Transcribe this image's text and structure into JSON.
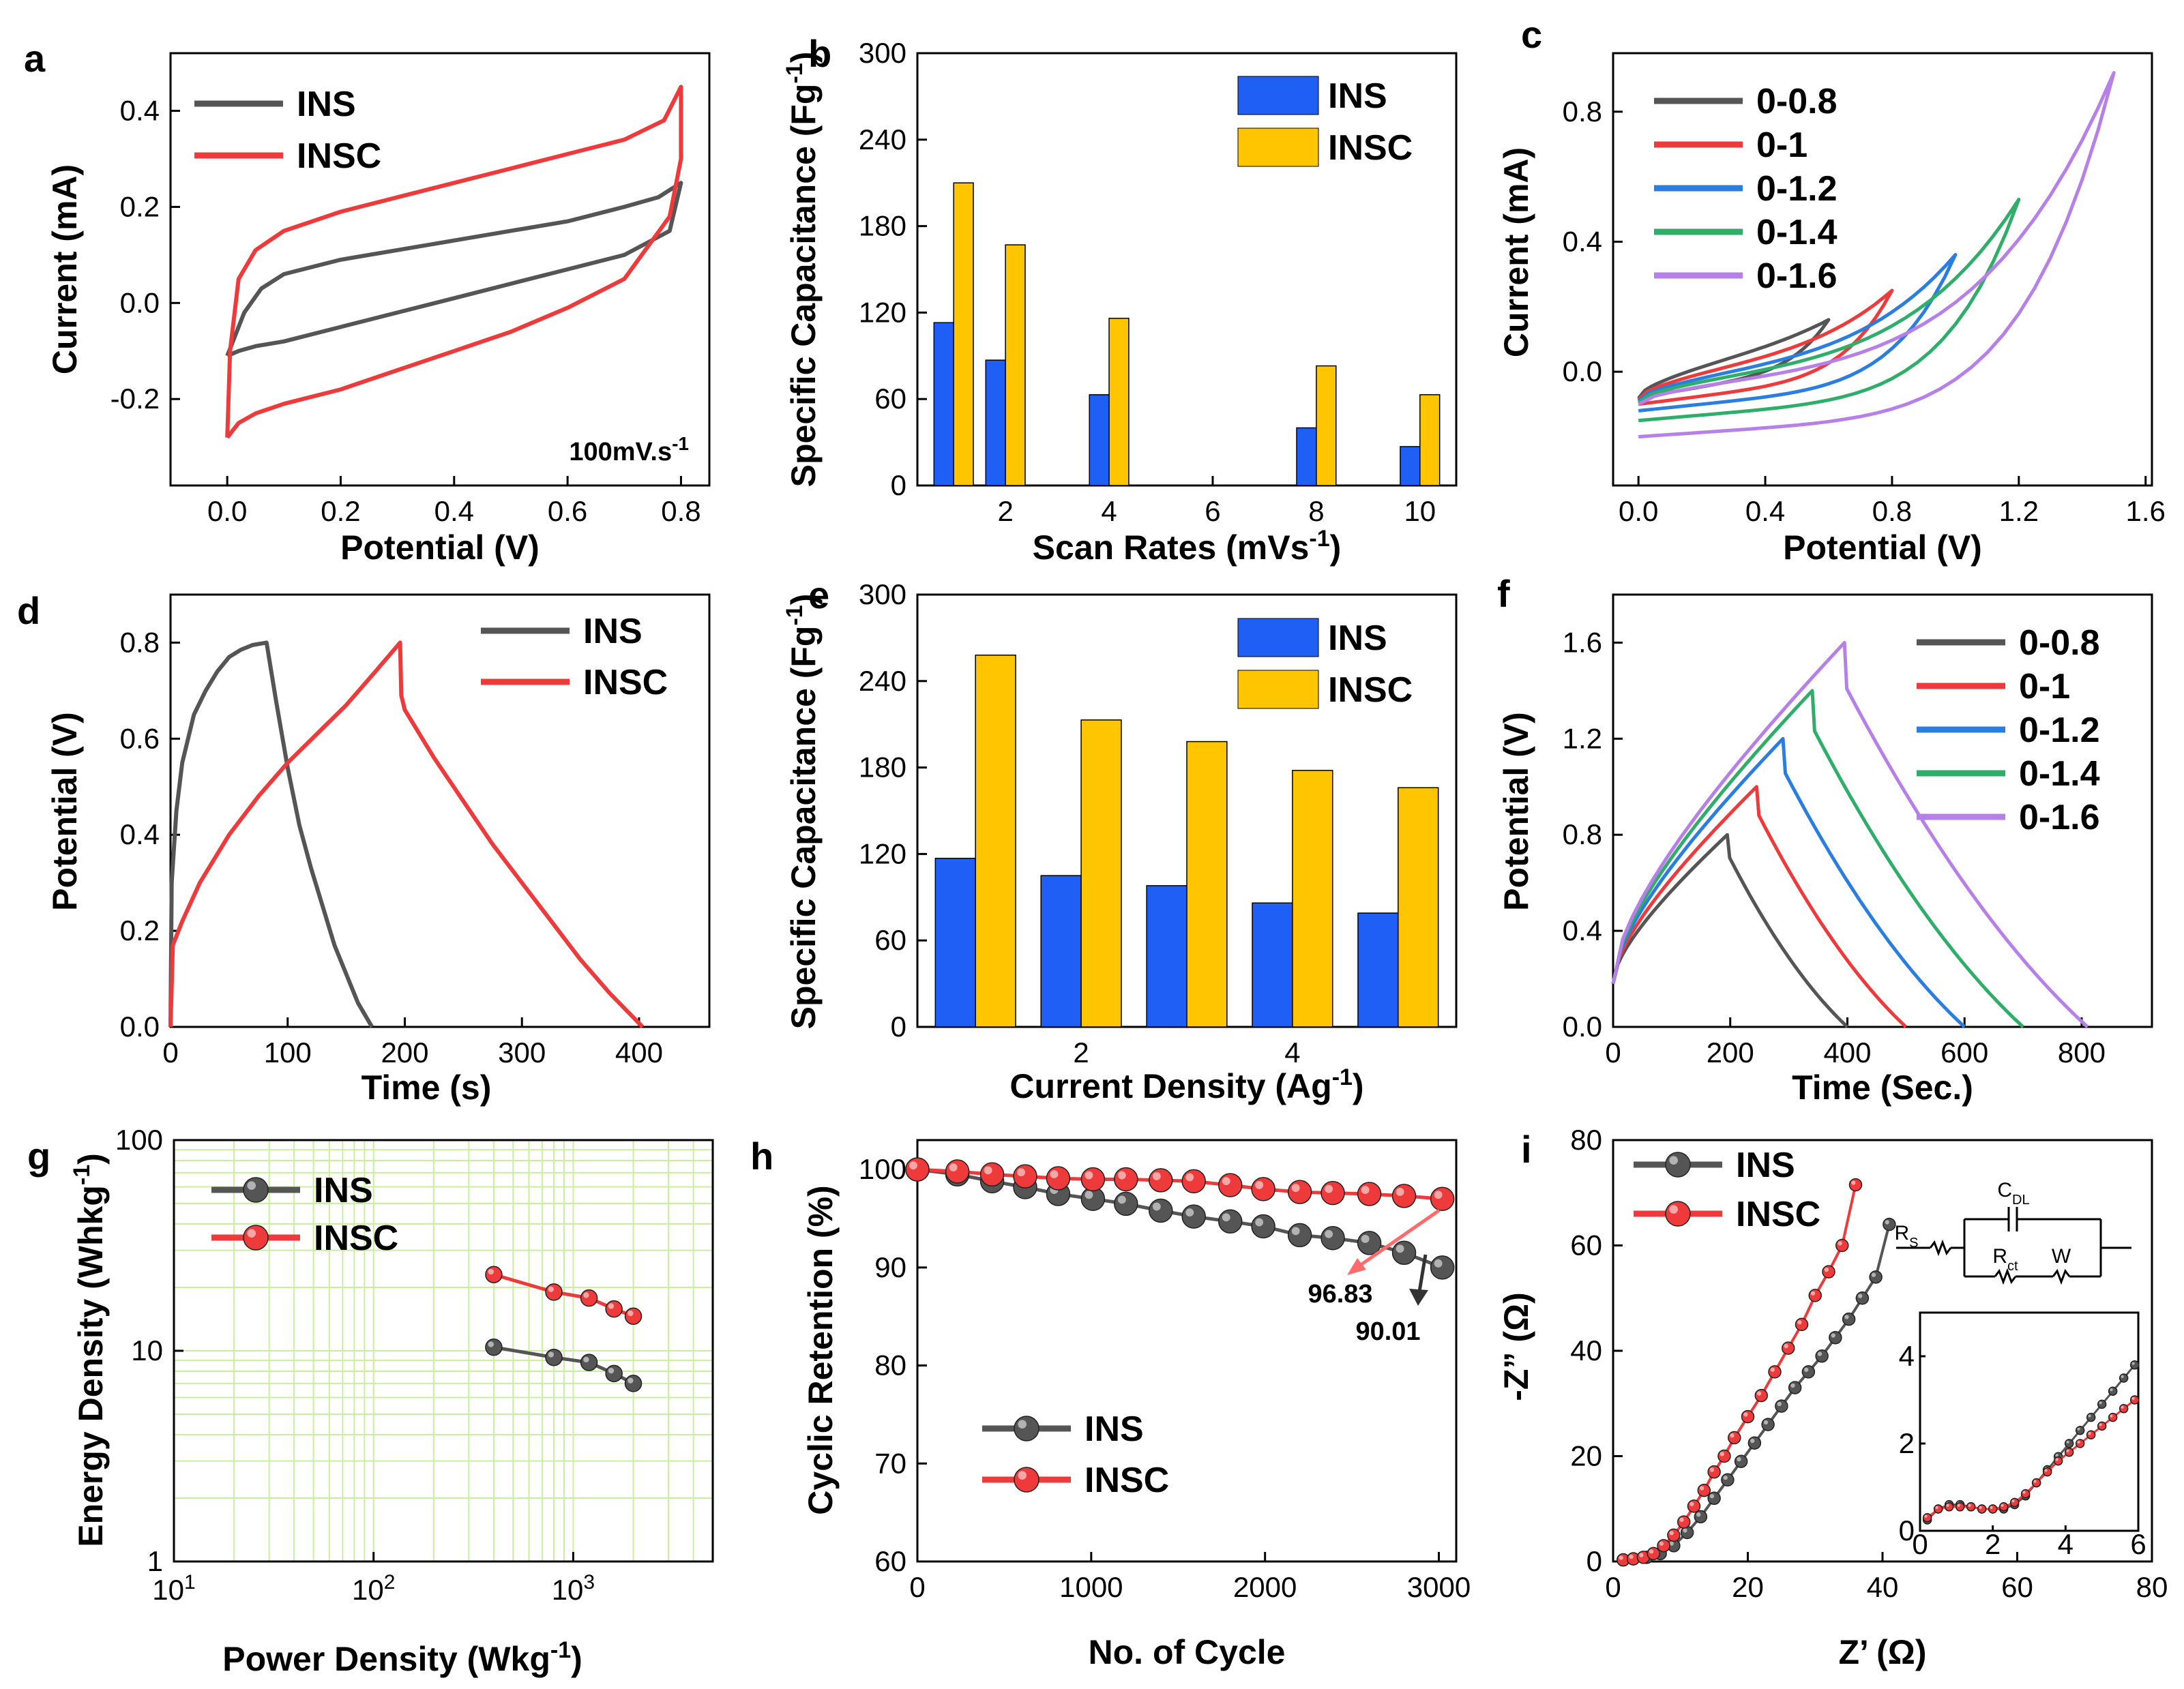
{
  "figure": {
    "palette": {
      "ins": "#555555",
      "insc": "#ee3a3a",
      "bar_ins": "#1f5ff5",
      "bar_insc": "#ffc600",
      "v08": "#555555",
      "v1": "#ee3a3a",
      "v12": "#2a7de1",
      "v14": "#2fae6a",
      "v16": "#b780e8",
      "grid_g": "#c9ef9e"
    }
  },
  "chart_data": [
    {
      "panel": "a",
      "type": "line",
      "xlabel": "Potential (V)",
      "ylabel": "Current (mA)",
      "annotation": "100mV.s-1",
      "xlim": [
        -0.1,
        0.85
      ],
      "ylim": [
        -0.38,
        0.52
      ],
      "xticks": [
        "0.0",
        "0.2",
        "0.4",
        "0.6",
        "0.8"
      ],
      "xtick_values": [
        0,
        0.2,
        0.4,
        0.6,
        0.8
      ],
      "yticks": [
        "-0.2",
        "0.0",
        "0.2",
        "0.4"
      ],
      "ytick_values": [
        -0.2,
        0,
        0.2,
        0.4
      ],
      "series": [
        {
          "name": "INS",
          "color": "#555555",
          "x": [
            0,
            0.01,
            0.03,
            0.06,
            0.1,
            0.2,
            0.3,
            0.4,
            0.5,
            0.6,
            0.7,
            0.76,
            0.8,
            0.78,
            0.7,
            0.6,
            0.5,
            0.4,
            0.3,
            0.2,
            0.1,
            0.05,
            0.02,
            0
          ],
          "y": [
            -0.11,
            -0.08,
            -0.02,
            0.03,
            0.06,
            0.09,
            0.11,
            0.13,
            0.15,
            0.17,
            0.2,
            0.22,
            0.25,
            0.15,
            0.1,
            0.07,
            0.04,
            0.01,
            -0.02,
            -0.05,
            -0.08,
            -0.09,
            -0.1,
            -0.11
          ]
        },
        {
          "name": "INSC",
          "color": "#ee3a3a",
          "x": [
            0,
            0.005,
            0.02,
            0.05,
            0.1,
            0.2,
            0.3,
            0.4,
            0.5,
            0.6,
            0.7,
            0.77,
            0.8,
            0.8,
            0.78,
            0.7,
            0.6,
            0.5,
            0.4,
            0.3,
            0.2,
            0.1,
            0.05,
            0.02,
            0
          ],
          "y": [
            -0.28,
            -0.1,
            0.05,
            0.11,
            0.15,
            0.19,
            0.22,
            0.25,
            0.28,
            0.31,
            0.34,
            0.38,
            0.45,
            0.3,
            0.18,
            0.05,
            -0.01,
            -0.06,
            -0.1,
            -0.14,
            -0.18,
            -0.21,
            -0.23,
            -0.25,
            -0.28
          ]
        }
      ]
    },
    {
      "panel": "b",
      "type": "bar",
      "xlabel": "Scan Rates (mVs-1)",
      "ylabel": "Specific Capacitance (Fg-1)",
      "xlim": [
        0.3,
        10.7
      ],
      "ylim": [
        0,
        300
      ],
      "xticks": [
        "2",
        "4",
        "6",
        "8",
        "10"
      ],
      "xtick_values": [
        2,
        4,
        6,
        8,
        10
      ],
      "yticks": [
        "0",
        "60",
        "120",
        "180",
        "240",
        "300"
      ],
      "ytick_values": [
        0,
        60,
        120,
        180,
        240,
        300
      ],
      "x": [
        1,
        2,
        4,
        8,
        10
      ],
      "series": [
        {
          "name": "INS",
          "color": "#1f5ff5",
          "values": [
            113,
            87,
            63,
            40,
            27
          ]
        },
        {
          "name": "INSC",
          "color": "#ffc600",
          "values": [
            210,
            167,
            116,
            83,
            63
          ]
        }
      ]
    },
    {
      "panel": "c",
      "type": "line",
      "xlabel": "Potential (V)",
      "ylabel": "Current (mA)",
      "xlim": [
        -0.08,
        1.62
      ],
      "ylim": [
        -0.35,
        0.98
      ],
      "xticks": [
        "0.0",
        "0.4",
        "0.8",
        "1.2",
        "1.6"
      ],
      "xtick_values": [
        0,
        0.4,
        0.8,
        1.2,
        1.6
      ],
      "yticks": [
        "0.0",
        "0.4",
        "0.8"
      ],
      "ytick_values": [
        0,
        0.4,
        0.8
      ],
      "series": [
        {
          "name": "0-0.8",
          "color": "#555555",
          "vmax": 0.6,
          "imax": 0.16,
          "imin": -0.08
        },
        {
          "name": "0-1",
          "color": "#ee3a3a",
          "vmax": 0.8,
          "imax": 0.25,
          "imin": -0.1
        },
        {
          "name": "0-1.2",
          "color": "#2a7de1",
          "vmax": 1.0,
          "imax": 0.36,
          "imin": -0.12
        },
        {
          "name": "0-1.4",
          "color": "#2fae6a",
          "vmax": 1.2,
          "imax": 0.53,
          "imin": -0.15
        },
        {
          "name": "0-1.6",
          "color": "#b780e8",
          "vmax": 1.5,
          "imax": 0.92,
          "imin": -0.2
        }
      ]
    },
    {
      "panel": "d",
      "type": "line",
      "xlabel": "Time (s)",
      "ylabel": "Potential (V)",
      "xlim": [
        0,
        460
      ],
      "ylim": [
        0,
        0.9
      ],
      "xticks": [
        "0",
        "100",
        "200",
        "300",
        "400"
      ],
      "xtick_values": [
        0,
        100,
        200,
        300,
        400
      ],
      "yticks": [
        "0.0",
        "0.2",
        "0.4",
        "0.6",
        "0.8"
      ],
      "ytick_values": [
        0,
        0.2,
        0.4,
        0.6,
        0.8
      ],
      "series": [
        {
          "name": "INS",
          "color": "#555555",
          "x": [
            0,
            1,
            5,
            10,
            20,
            30,
            40,
            50,
            60,
            70,
            82,
            90,
            100,
            110,
            120,
            130,
            140,
            150,
            160,
            172
          ],
          "y": [
            0,
            0.3,
            0.45,
            0.55,
            0.65,
            0.7,
            0.74,
            0.77,
            0.785,
            0.795,
            0.8,
            0.68,
            0.54,
            0.42,
            0.33,
            0.25,
            0.17,
            0.11,
            0.05,
            0
          ]
        },
        {
          "name": "INSC",
          "color": "#ee3a3a",
          "x": [
            0,
            2,
            10,
            25,
            50,
            75,
            100,
            125,
            150,
            175,
            196,
            197,
            200,
            225,
            250,
            275,
            300,
            325,
            350,
            375,
            403
          ],
          "y": [
            0,
            0.17,
            0.22,
            0.3,
            0.4,
            0.48,
            0.55,
            0.61,
            0.67,
            0.74,
            0.8,
            0.69,
            0.66,
            0.56,
            0.47,
            0.38,
            0.3,
            0.22,
            0.14,
            0.07,
            0
          ]
        }
      ]
    },
    {
      "panel": "e",
      "type": "bar",
      "xlabel": "Current Density (Ag-1)",
      "ylabel": "Specific Capacitance (Fg-1)",
      "xlim": [
        0.45,
        5.55
      ],
      "ylim": [
        0,
        300
      ],
      "xticks": [
        "2",
        "4"
      ],
      "xtick_values": [
        2,
        4
      ],
      "yticks": [
        "0",
        "60",
        "120",
        "180",
        "240",
        "300"
      ],
      "ytick_values": [
        0,
        60,
        120,
        180,
        240,
        300
      ],
      "x": [
        1,
        2,
        3,
        4,
        5
      ],
      "series": [
        {
          "name": "INS",
          "color": "#1f5ff5",
          "values": [
            117,
            105,
            98,
            86,
            79
          ]
        },
        {
          "name": "INSC",
          "color": "#ffc600",
          "values": [
            258,
            213,
            198,
            178,
            166
          ]
        }
      ]
    },
    {
      "panel": "f",
      "type": "line",
      "xlabel": "Time (Sec.)",
      "ylabel": "Potential (V)",
      "xlim": [
        0,
        920
      ],
      "ylim": [
        0,
        1.8
      ],
      "xticks": [
        "0",
        "200",
        "400",
        "600",
        "800"
      ],
      "xtick_values": [
        0,
        200,
        400,
        600,
        800
      ],
      "yticks": [
        "0.0",
        "0.4",
        "0.8",
        "1.2",
        "1.6"
      ],
      "ytick_values": [
        0,
        0.4,
        0.8,
        1.2,
        1.6
      ],
      "series": [
        {
          "name": "0-0.8",
          "color": "#555555",
          "vmax": 0.8,
          "tpeak": 195,
          "tend": 400
        },
        {
          "name": "0-1",
          "color": "#ee3a3a",
          "vmax": 1.0,
          "tpeak": 245,
          "tend": 500
        },
        {
          "name": "0-1.2",
          "color": "#2a7de1",
          "vmax": 1.2,
          "tpeak": 290,
          "tend": 600
        },
        {
          "name": "0-1.4",
          "color": "#2fae6a",
          "vmax": 1.4,
          "tpeak": 340,
          "tend": 700
        },
        {
          "name": "0-1.6",
          "color": "#b780e8",
          "vmax": 1.6,
          "tpeak": 395,
          "tend": 810
        }
      ]
    },
    {
      "panel": "g",
      "type": "scatter",
      "xlabel": "Power Density (Wkg-1)",
      "ylabel": "Energy Density (Whkg-1)",
      "xscale": "log",
      "yscale": "log",
      "xlim": [
        10,
        5000
      ],
      "ylim": [
        1,
        100
      ],
      "xticks": [
        "10",
        "10",
        "10"
      ],
      "xtick_exponents": [
        "1",
        "2",
        "3"
      ],
      "xtick_values": [
        10,
        100,
        1000
      ],
      "yticks": [
        "1",
        "10",
        "100"
      ],
      "ytick_values": [
        1,
        10,
        100
      ],
      "grid": true,
      "series": [
        {
          "name": "INS",
          "color": "#555555",
          "x": [
            400,
            800,
            1200,
            1600,
            2000
          ],
          "y": [
            10.4,
            9.3,
            8.8,
            7.8,
            7.0
          ]
        },
        {
          "name": "INSC",
          "color": "#ee3a3a",
          "x": [
            400,
            800,
            1200,
            1600,
            2000
          ],
          "y": [
            23,
            19,
            17.8,
            15.8,
            14.6
          ]
        }
      ]
    },
    {
      "panel": "h",
      "type": "scatter",
      "xlabel": "No. of Cycle",
      "ylabel": "Cyclic Retention (%)",
      "xlim": [
        0,
        3100
      ],
      "ylim": [
        60,
        103
      ],
      "xticks": [
        "0",
        "1000",
        "2000",
        "3000"
      ],
      "xtick_values": [
        0,
        1000,
        2000,
        3000
      ],
      "yticks": [
        "60",
        "70",
        "80",
        "90",
        "100"
      ],
      "ytick_values": [
        60,
        70,
        80,
        90,
        100
      ],
      "annotations": [
        "96.83",
        "90.01"
      ],
      "series": [
        {
          "name": "INS",
          "color": "#555555",
          "x": [
            0,
            230,
            430,
            620,
            810,
            1010,
            1200,
            1400,
            1590,
            1800,
            1990,
            2200,
            2390,
            2600,
            2800,
            3020
          ],
          "y": [
            100,
            99.5,
            98.8,
            98.2,
            97.5,
            97,
            96.5,
            95.8,
            95.2,
            94.7,
            94.2,
            93.3,
            93,
            92.5,
            91.5,
            90
          ]
        },
        {
          "name": "INSC",
          "color": "#ee3a3a",
          "x": [
            0,
            230,
            430,
            620,
            810,
            1010,
            1200,
            1400,
            1590,
            1800,
            1990,
            2200,
            2390,
            2600,
            2800,
            3020
          ],
          "y": [
            100,
            99.8,
            99.5,
            99.3,
            99.1,
            99,
            99,
            98.9,
            98.8,
            98.4,
            98,
            97.7,
            97.6,
            97.5,
            97.3,
            97
          ]
        }
      ]
    },
    {
      "panel": "i",
      "type": "scatter",
      "xlabel": "Z’ (Ω)",
      "ylabel": "-Z” (Ω)",
      "xlim": [
        0,
        80
      ],
      "ylim": [
        0,
        80
      ],
      "xticks": [
        "0",
        "20",
        "40",
        "60",
        "80"
      ],
      "xtick_values": [
        0,
        20,
        40,
        60,
        80
      ],
      "yticks": [
        "0",
        "20",
        "40",
        "60",
        "80"
      ],
      "ytick_values": [
        0,
        20,
        40,
        60,
        80
      ],
      "circuit_labels": {
        "rs": "R",
        "rs_sub": "S",
        "cdl": "C",
        "cdl_sub": "DL",
        "rct": "R",
        "rct_sub": "ct",
        "w": "W"
      },
      "inset": {
        "xlim": [
          0,
          6
        ],
        "ylim": [
          0,
          5
        ],
        "xticks": [
          "0",
          "2",
          "4",
          "6"
        ],
        "xtick_values": [
          0,
          2,
          4,
          6
        ],
        "yticks": [
          "0",
          "2",
          "4"
        ],
        "ytick_values": [
          0,
          2,
          4
        ]
      },
      "series": [
        {
          "name": "INS",
          "color": "#555555",
          "x": [
            1.5,
            3,
            5,
            7,
            9,
            11,
            13,
            15,
            17,
            19,
            21,
            23,
            25,
            27,
            29,
            31,
            33,
            35,
            37,
            39,
            41
          ],
          "y": [
            0.3,
            0.5,
            0.8,
            1.5,
            3,
            5.5,
            8.5,
            12,
            15.5,
            19,
            22.5,
            26,
            29.5,
            33,
            36,
            39,
            42.5,
            46,
            50,
            54,
            64
          ]
        },
        {
          "name": "INSC",
          "color": "#ee3a3a",
          "x": [
            1.5,
            3,
            4.5,
            6,
            7.5,
            9,
            10.5,
            12,
            13.5,
            15,
            16.5,
            18,
            20,
            22,
            24,
            26,
            28,
            30,
            32,
            34,
            36
          ],
          "y": [
            0.3,
            0.5,
            0.8,
            1.5,
            3,
            5,
            7.5,
            10.5,
            13.5,
            17,
            20,
            23.5,
            27.5,
            31.5,
            36,
            40.5,
            45,
            50.5,
            55,
            60,
            71.5
          ]
        }
      ],
      "inset_series": [
        {
          "name": "INS",
          "color": "#555555",
          "x": [
            0.2,
            0.5,
            0.8,
            1.1,
            1.4,
            1.7,
            2,
            2.3,
            2.6,
            2.9,
            3.2,
            3.5,
            3.8,
            4.1,
            4.4,
            4.7,
            5,
            5.3,
            5.6,
            5.9
          ],
          "y": [
            0.25,
            0.5,
            0.6,
            0.6,
            0.55,
            0.5,
            0.5,
            0.5,
            0.6,
            0.8,
            1.1,
            1.4,
            1.7,
            2,
            2.3,
            2.6,
            2.9,
            3.2,
            3.5,
            3.8
          ]
        },
        {
          "name": "INSC",
          "color": "#ee3a3a",
          "x": [
            0.2,
            0.5,
            0.8,
            1.1,
            1.4,
            1.7,
            2,
            2.3,
            2.6,
            2.9,
            3.2,
            3.5,
            3.8,
            4.1,
            4.4,
            4.7,
            5,
            5.3,
            5.6,
            5.9
          ],
          "y": [
            0.3,
            0.5,
            0.55,
            0.55,
            0.55,
            0.5,
            0.5,
            0.55,
            0.65,
            0.85,
            1.1,
            1.35,
            1.6,
            1.8,
            2,
            2.2,
            2.4,
            2.6,
            2.8,
            3.0
          ]
        }
      ]
    }
  ]
}
